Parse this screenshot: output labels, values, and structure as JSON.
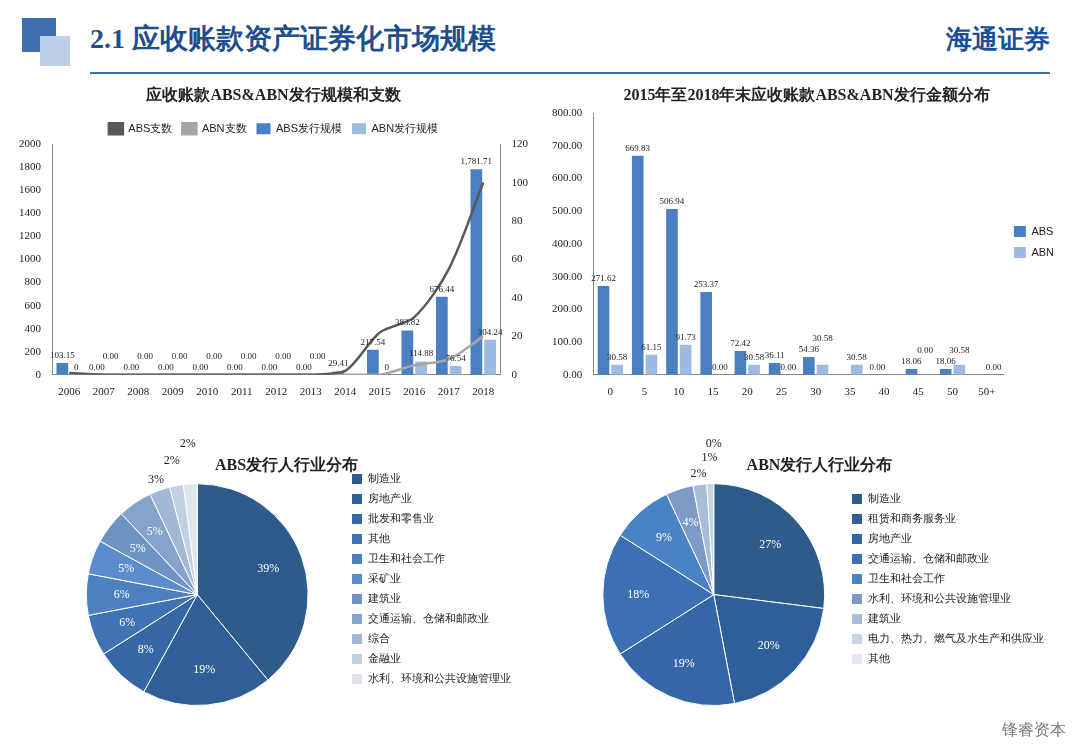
{
  "header": {
    "title": "2.1 应收账款资产证券化市场规模",
    "logo": "海通证券",
    "watermark": "锋睿资本"
  },
  "chart_data": [
    {
      "type": "bar",
      "title": "应收账款ABS&ABN发行规模和支数",
      "categories": [
        "2006",
        "2007",
        "2008",
        "2009",
        "2010",
        "2011",
        "2012",
        "2013",
        "2014",
        "2015",
        "2016",
        "2017",
        "2018"
      ],
      "series": [
        {
          "name": "ABS发行规模",
          "type": "bar",
          "color": "#4a7fc1",
          "values": [
            103.15,
            0,
            0,
            0,
            0,
            0,
            0,
            0,
            29.41,
            217.54,
            383.82,
            676.44,
            1781.71
          ],
          "value_labels": [
            "103.15",
            "0.00",
            "0.00",
            "0.00",
            "0.00",
            "0.00",
            "0.00",
            "0.00",
            "29.41",
            "217.54",
            "383.82",
            "676.44",
            "1,781.71"
          ]
        },
        {
          "name": "ABN发行规模",
          "type": "bar",
          "color": "#9dbbe0",
          "values": [
            0,
            0,
            0,
            0,
            0,
            0,
            0,
            0,
            0,
            0,
            114.88,
            76.54,
            304.24
          ],
          "value_labels": [
            "0",
            "0.00",
            "0.00",
            "0.00",
            "0.00",
            "0.00",
            "0.00",
            "0.00",
            null,
            "0",
            "114.88",
            "76.54",
            "304.24"
          ]
        },
        {
          "name": "ABS支数",
          "type": "line",
          "color": "#595959",
          "axis": "y2",
          "values": [
            1,
            0,
            0,
            0,
            0,
            0,
            0,
            0,
            2,
            22,
            30,
            55,
            100
          ]
        },
        {
          "name": "ABN支数",
          "type": "line",
          "color": "#a6a6a6",
          "axis": "y2",
          "values": [
            0,
            0,
            0,
            0,
            0,
            0,
            0,
            0,
            0,
            0,
            5,
            8,
            20
          ]
        }
      ],
      "ylim": [
        0,
        2000
      ],
      "yticks": [
        0,
        200,
        400,
        600,
        800,
        1000,
        1200,
        1400,
        1600,
        1800,
        2000
      ],
      "y2lim": [
        0,
        120
      ],
      "y2ticks": [
        0,
        20,
        40,
        60,
        80,
        100,
        120
      ],
      "grid": false,
      "legend": "top",
      "data_labels": true
    },
    {
      "type": "bar",
      "title": "2015年至2018年末应收账款ABS&ABN发行金额分布",
      "categories": [
        "0",
        "5",
        "10",
        "15",
        "20",
        "25",
        "30",
        "35",
        "40",
        "45",
        "50",
        "50+"
      ],
      "series": [
        {
          "name": "ABS",
          "color": "#4a7fc1",
          "values": [
            271.62,
            669.83,
            506.94,
            253.37,
            72.42,
            36.11,
            54.36,
            0,
            0,
            18.06,
            18.06,
            0
          ],
          "value_labels": [
            "271.62",
            "669.83",
            "506.94",
            "253.37",
            "72.42",
            "36.11",
            "54.36",
            null,
            "0.00",
            "18.06",
            "18.06",
            null
          ]
        },
        {
          "name": "ABN",
          "color": "#9dbbe0",
          "values": [
            30.58,
            61.15,
            91.73,
            0,
            30.58,
            0,
            30.58,
            30.58,
            0,
            0,
            30.58,
            0
          ],
          "value_labels": [
            "30.58",
            "61.15",
            "91.73",
            "0.00",
            "30.58",
            "0.00",
            "30.58",
            "30.58",
            null,
            "0.00",
            "30.58",
            "0.00"
          ]
        }
      ],
      "ylim": [
        0,
        800
      ],
      "yticks": [
        {
          "value": 0,
          "label": "0.00"
        },
        {
          "value": 100,
          "label": "100.00"
        },
        {
          "value": 200,
          "label": "200.00"
        },
        {
          "value": 300,
          "label": "300.00"
        },
        {
          "value": 400,
          "label": "400.00"
        },
        {
          "value": 500,
          "label": "500.00"
        },
        {
          "value": 600,
          "label": "600.00"
        },
        {
          "value": 700,
          "label": "700.00"
        },
        {
          "value": 800,
          "label": "800.00"
        }
      ],
      "grid": false,
      "legend": "right",
      "data_labels": true
    },
    {
      "type": "pie",
      "title": "ABS发行人行业分布",
      "categories": [
        "制造业",
        "房地产业",
        "批发和零售业",
        "其他",
        "卫生和社会工作",
        "采矿业",
        "建筑业",
        "交通运输、仓储和邮政业",
        "综合",
        "金融业",
        "水利、环境和公共设施管理业"
      ],
      "values": [
        39,
        19,
        8,
        6,
        6,
        5,
        5,
        5,
        3,
        2,
        2
      ],
      "value_labels": [
        "39%",
        "19%",
        "8%",
        "6%",
        "6%",
        "5%",
        "5%",
        "5%",
        "3%",
        "2%",
        "2%"
      ],
      "colors": [
        "#2f5b8a",
        "#2f5f96",
        "#3768a6",
        "#4073b3",
        "#4d80c0",
        "#5b8ccb",
        "#6f93c2",
        "#86a3cb",
        "#a3b7d6",
        "#c3cfe2",
        "#dfe5ef"
      ],
      "legend": "right",
      "data_labels": true
    },
    {
      "type": "pie",
      "title": "ABN发行人行业分布",
      "categories": [
        "制造业",
        "租赁和商务服务业",
        "房地产业",
        "交通运输、仓储和邮政业",
        "卫生和社会工作",
        "水利、环境和公共设施管理业",
        "建筑业",
        "电力、热力、燃气及水生产和供应业",
        "其他"
      ],
      "values": [
        27,
        20,
        19,
        18,
        9,
        4,
        2,
        1,
        0
      ],
      "value_labels": [
        "27%",
        "20%",
        "19%",
        "18%",
        "9%",
        "4%",
        "2%",
        "1%",
        "0%"
      ],
      "colors": [
        "#2f5b8a",
        "#2e5f9a",
        "#3567a8",
        "#3d70b3",
        "#4a82c6",
        "#7d9bc6",
        "#a9bcd8",
        "#c8d4e6",
        "#e2e8f1"
      ],
      "legend": "right",
      "data_labels": true
    }
  ]
}
